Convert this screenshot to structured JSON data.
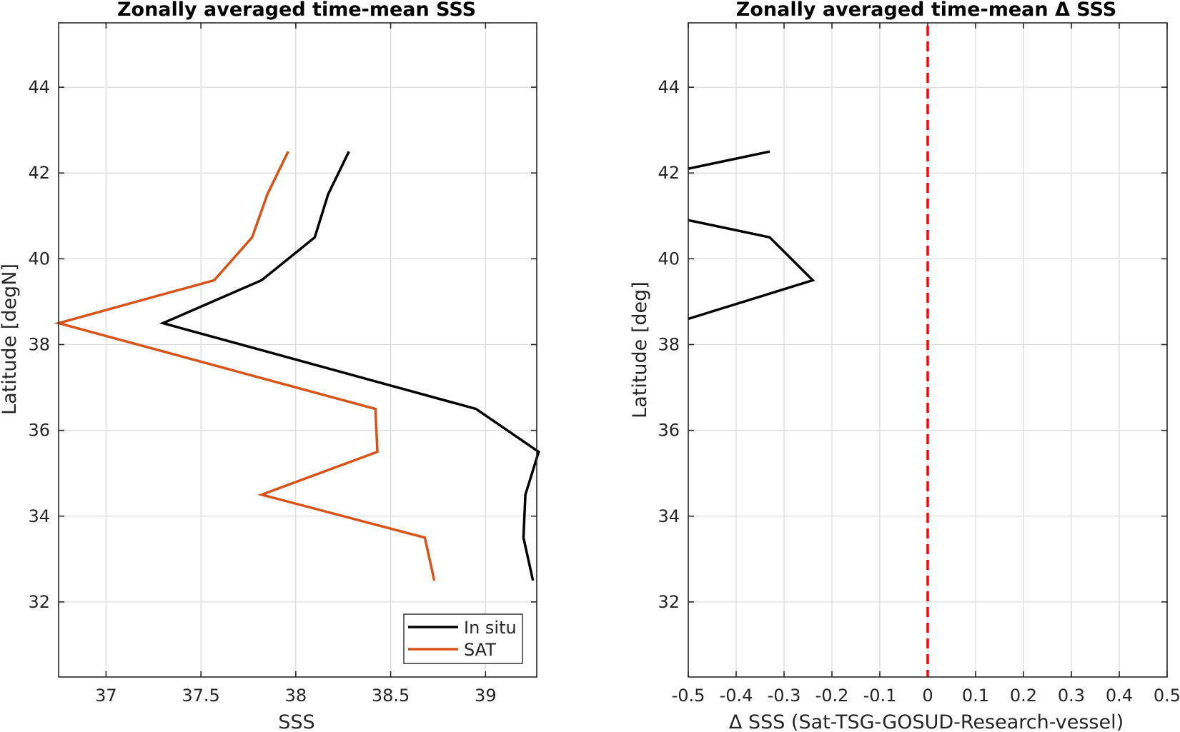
{
  "chart_data": [
    {
      "type": "line",
      "title": "Zonally averaged time-mean SSS",
      "xlabel": "SSS",
      "ylabel": "Latitude [degN]",
      "xlim": [
        36.75,
        39.27
      ],
      "ylim": [
        30.25,
        45.5
      ],
      "xticks": [
        37,
        37.5,
        38,
        38.5,
        39
      ],
      "xtick_labels": [
        "37",
        "37.5",
        "38",
        "38.5",
        "39"
      ],
      "yticks": [
        32,
        34,
        36,
        38,
        40,
        42,
        44
      ],
      "ytick_labels": [
        "32",
        "34",
        "36",
        "38",
        "40",
        "42",
        "44"
      ],
      "grid": true,
      "legend": {
        "placement": "bottom-right",
        "entries": [
          "In situ",
          "SAT"
        ]
      },
      "series": [
        {
          "name": "In situ",
          "color": "#000000",
          "points": [
            [
              39.25,
              32.5
            ],
            [
              39.2,
              33.5
            ],
            [
              39.21,
              34.5
            ],
            [
              39.28,
              35.5
            ],
            [
              38.95,
              36.5
            ],
            [
              37.3,
              38.5
            ],
            [
              37.82,
              39.5
            ],
            [
              38.1,
              40.5
            ],
            [
              38.17,
              41.5
            ],
            [
              38.28,
              42.5
            ]
          ]
        },
        {
          "name": "SAT",
          "color": "#d95319",
          "points": [
            [
              38.73,
              32.5
            ],
            [
              38.68,
              33.5
            ],
            [
              37.82,
              34.5
            ],
            [
              38.43,
              35.5
            ],
            [
              38.42,
              36.5
            ],
            [
              36.75,
              38.5
            ],
            [
              37.57,
              39.5
            ],
            [
              37.77,
              40.5
            ],
            [
              37.85,
              41.5
            ],
            [
              37.96,
              42.5
            ]
          ]
        }
      ]
    },
    {
      "type": "line",
      "title": "Zonally averaged time-mean Δ SSS",
      "xlabel": "Δ SSS (Sat-TSG-GOSUD-Research-vessel)",
      "ylabel": "Latitude [deg]",
      "xlim": [
        -0.5,
        0.5
      ],
      "ylim": [
        30.25,
        45.5
      ],
      "xticks": [
        -0.5,
        -0.4,
        -0.3,
        -0.2,
        -0.1,
        0,
        0.1,
        0.2,
        0.3,
        0.4,
        0.5
      ],
      "xtick_labels": [
        "-0.5",
        "-0.4",
        "-0.3",
        "-0.2",
        "-0.1",
        "0",
        "0.1",
        "0.2",
        "0.3",
        "0.4",
        "0.5"
      ],
      "yticks": [
        32,
        34,
        36,
        38,
        40,
        42,
        44
      ],
      "ytick_labels": [
        "32",
        "34",
        "36",
        "38",
        "40",
        "42",
        "44"
      ],
      "grid": true,
      "series": [
        {
          "color": "#000000",
          "segments": [
            [
              [
                -0.5,
                42.1
              ],
              [
                -0.33,
                42.5
              ]
            ],
            [
              [
                -0.5,
                38.6
              ],
              [
                -0.24,
                39.5
              ],
              [
                -0.33,
                40.5
              ],
              [
                -0.5,
                40.9
              ]
            ]
          ]
        }
      ],
      "reference_line": {
        "x": 0,
        "color": "#ff0000",
        "style": "dashed"
      }
    }
  ]
}
